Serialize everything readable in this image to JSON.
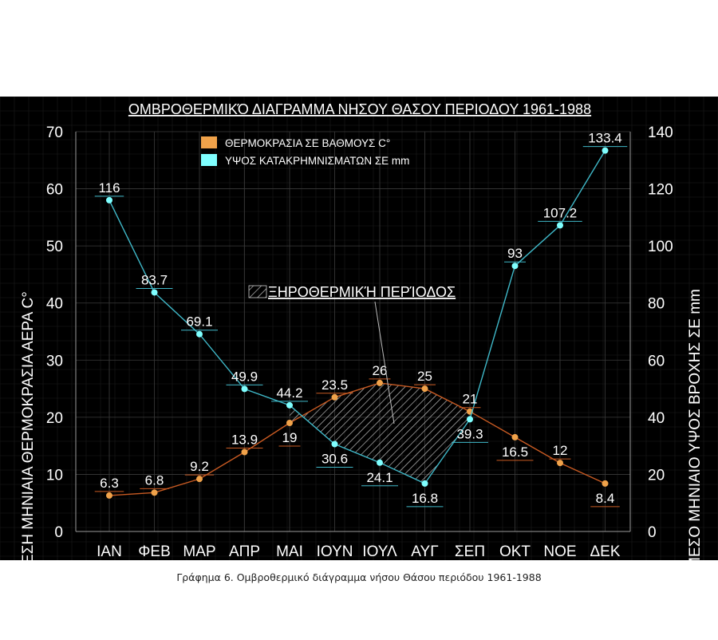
{
  "caption": "Γράφημα 6. Ομβροθερμικό διάγραμμα νήσου Θάσου περιόδου 1961-1988",
  "chart_data": {
    "type": "line",
    "title": "ΟΜΒΡΟΘΕΡΜΙΚΌ ΔΙΑΓΡΑΜΜΑ ΝΗΣΟΥ ΘΑΣΟΥ ΠΕΡΙΟΔΟΥ 1961-1988",
    "categories": [
      "ΙΑΝ",
      "ΦΕΒ",
      "ΜΑΡ",
      "ΑΠΡ",
      "ΜΑΙ",
      "ΙΟΥΝ",
      "ΙΟΥΛ",
      "ΑΥΓ",
      "ΣΕΠ",
      "ΟΚΤ",
      "ΝΟΕ",
      "ΔΕΚ"
    ],
    "ylabel_left": "ΜΕΣΗ ΜΗΝΙΑΙΑ ΘΕΡΜΟΚΡΑΣΙΑ ΑΕΡΑ C°",
    "ylabel_right": "ΜΕΣΟ ΜΗΝΙΑΙΟ ΥΨΟΣ ΒΡΟΧΗΣ ΣΕ mm",
    "ylim_left": [
      0,
      70
    ],
    "ylim_right": [
      0,
      140
    ],
    "yticks_left": [
      0,
      10,
      20,
      30,
      40,
      50,
      60,
      70
    ],
    "yticks_right": [
      0,
      20,
      40,
      60,
      80,
      100,
      120,
      140
    ],
    "grid": true,
    "legend_position": "top-left",
    "series": [
      {
        "name": "ΘΕΡΜΟΚΡΑΣΙΑ ΣΕ ΒΑΘΜΟΥΣ C°",
        "axis": "left",
        "color": "#f0a24a",
        "line_color": "#c85a22",
        "values": [
          6.3,
          6.8,
          9.2,
          13.9,
          19,
          23.5,
          26,
          25,
          21,
          16.5,
          12,
          8.4
        ],
        "labels": [
          "6.3",
          "6.8",
          "9.2",
          "13.9",
          "19",
          "23.5",
          "26",
          "25",
          "21",
          "16.5",
          "12",
          "8.4"
        ],
        "label_position": [
          "above",
          "above",
          "above",
          "above",
          "below",
          "above",
          "above",
          "above",
          "above",
          "below",
          "above",
          "below"
        ]
      },
      {
        "name": "ΥΨΟΣ ΚΑΤΑΚΡΗΜΝΙΣΜΑΤΩΝ ΣΕ mm",
        "axis": "right",
        "color": "#7fffff",
        "line_color": "#3fb8c8",
        "values": [
          116,
          83.7,
          69.1,
          49.9,
          44.2,
          30.6,
          24.1,
          16.8,
          39.3,
          93,
          107.2,
          133.4
        ],
        "labels": [
          "116",
          "83.7",
          "69.1",
          "49.9",
          "44.2",
          "30.6",
          "24.1",
          "16.8",
          "39.3",
          "93",
          "107.2",
          "133.4"
        ],
        "label_position": [
          "above",
          "above",
          "above",
          "above",
          "above",
          "below",
          "below",
          "below",
          "below",
          "above",
          "above",
          "above"
        ]
      }
    ],
    "annotation": {
      "text": "ΞΗΡΟΘΕΡΜΙΚΉ ΠΕΡΊΟΔΟΣ",
      "region_months": [
        "ΜΑΙ",
        "ΙΟΥΝ",
        "ΙΟΥΛ",
        "ΑΥΓ",
        "ΣΕΠ"
      ],
      "fill": "hatched"
    }
  }
}
